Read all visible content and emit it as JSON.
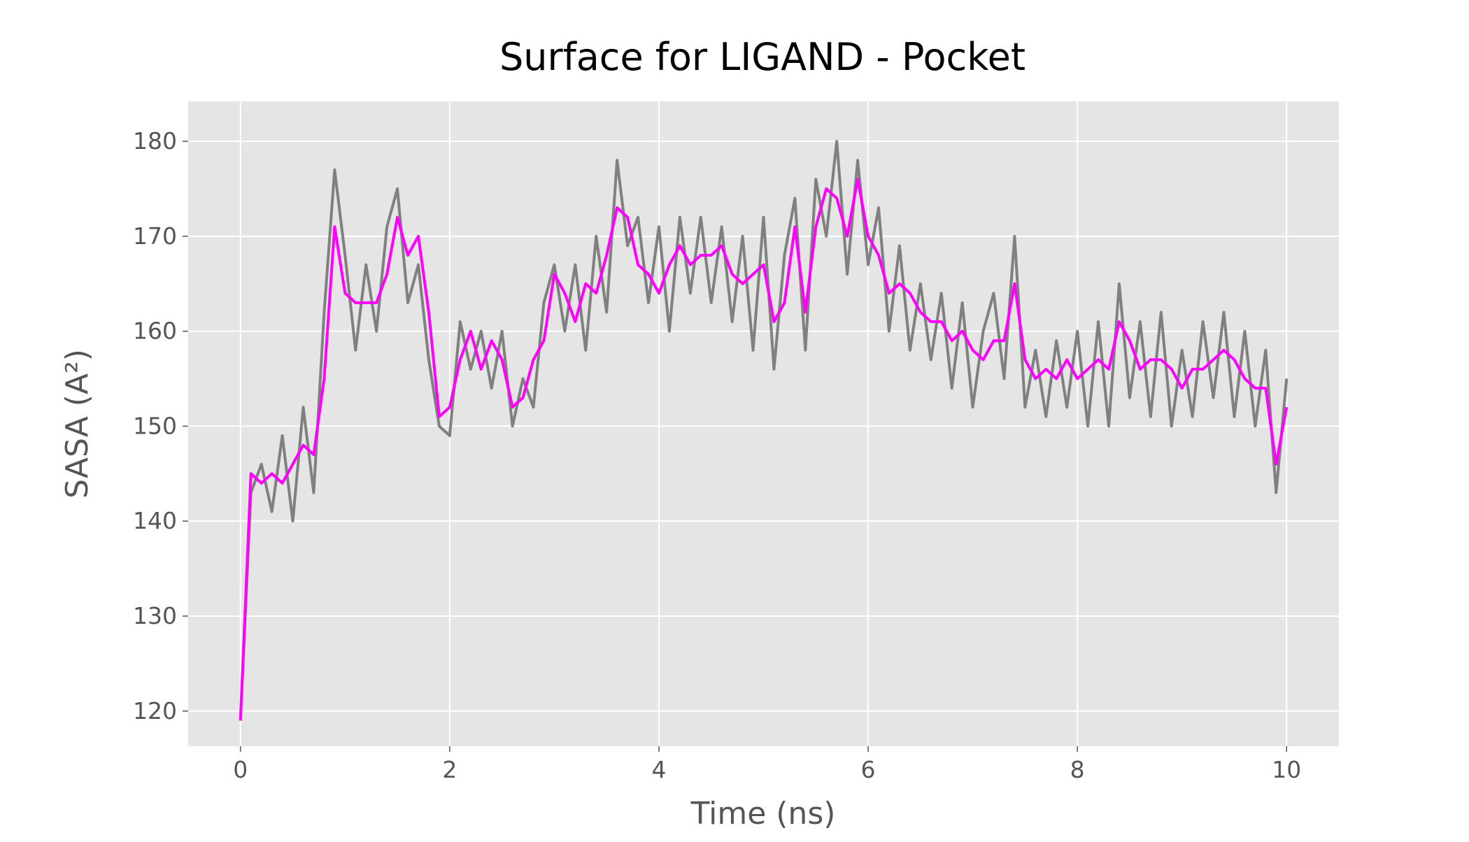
{
  "chart_data": {
    "type": "line",
    "title": "Surface for LIGAND - Pocket",
    "x_label": "Time (ns)",
    "y_label": "SASA (A²)",
    "x": [
      0,
      0.1,
      0.2,
      0.3,
      0.4,
      0.5,
      0.6,
      0.7,
      0.8,
      0.9,
      1,
      1.1,
      1.2,
      1.3,
      1.4,
      1.5,
      1.6,
      1.7,
      1.8,
      1.9,
      2,
      2.1,
      2.2,
      2.3,
      2.4,
      2.5,
      2.6,
      2.7,
      2.8,
      2.9,
      3,
      3.1,
      3.2,
      3.3,
      3.4,
      3.5,
      3.6,
      3.7,
      3.8,
      3.9,
      4,
      4.1,
      4.2,
      4.3,
      4.4,
      4.5,
      4.6,
      4.7,
      4.8,
      4.9,
      5,
      5.1,
      5.2,
      5.3,
      5.4,
      5.5,
      5.6,
      5.7,
      5.8,
      5.9,
      6,
      6.1,
      6.2,
      6.3,
      6.4,
      6.5,
      6.6,
      6.7,
      6.8,
      6.9,
      7,
      7.1,
      7.2,
      7.3,
      7.4,
      7.5,
      7.6,
      7.7,
      7.8,
      7.9,
      8,
      8.1,
      8.2,
      8.3,
      8.4,
      8.5,
      8.6,
      8.7,
      8.8,
      8.9,
      9,
      9.1,
      9.2,
      9.3,
      9.4,
      9.5,
      9.6,
      9.7,
      9.8,
      9.9,
      10
    ],
    "series": [
      {
        "color": "#808080",
        "values": [
          119,
          143,
          146,
          141,
          149,
          140,
          152,
          143,
          162,
          177,
          168,
          158,
          167,
          160,
          171,
          175,
          163,
          167,
          157,
          150,
          149,
          161,
          156,
          160,
          154,
          160,
          150,
          155,
          152,
          163,
          167,
          160,
          167,
          158,
          170,
          162,
          178,
          169,
          172,
          163,
          171,
          160,
          172,
          164,
          172,
          163,
          171,
          161,
          170,
          158,
          172,
          156,
          168,
          174,
          158,
          176,
          170,
          180,
          166,
          178,
          167,
          173,
          160,
          169,
          158,
          165,
          157,
          164,
          154,
          163,
          152,
          160,
          164,
          155,
          170,
          152,
          158,
          151,
          159,
          152,
          160,
          150,
          161,
          150,
          165,
          153,
          161,
          151,
          162,
          150,
          158,
          151,
          161,
          153,
          162,
          151,
          160,
          150,
          158,
          143,
          155
        ]
      },
      {
        "color": "#ff00ff",
        "values": [
          119,
          145,
          144,
          145,
          144,
          146,
          148,
          147,
          155,
          171,
          164,
          163,
          163,
          163,
          166,
          172,
          168,
          170,
          162,
          151,
          152,
          157,
          160,
          156,
          159,
          157,
          152,
          153,
          157,
          159,
          166,
          164,
          161,
          165,
          164,
          168,
          173,
          172,
          167,
          166,
          164,
          167,
          169,
          167,
          168,
          168,
          169,
          166,
          165,
          166,
          167,
          161,
          163,
          171,
          162,
          171,
          175,
          174,
          170,
          176,
          170,
          168,
          164,
          165,
          164,
          162,
          161,
          161,
          159,
          160,
          158,
          157,
          159,
          159,
          165,
          157,
          155,
          156,
          155,
          157,
          155,
          156,
          157,
          156,
          161,
          159,
          156,
          157,
          157,
          156,
          154,
          156,
          156,
          157,
          158,
          157,
          155,
          154,
          154,
          146,
          152
        ]
      }
    ],
    "xlim": [
      -0.5,
      10.5
    ],
    "ylim": [
      116.3,
      184.2
    ],
    "xticks": [
      0,
      2,
      4,
      6,
      8,
      10
    ],
    "yticks": [
      120,
      130,
      140,
      150,
      160,
      170,
      180
    ],
    "grid": true,
    "background": "#e5e5e5"
  }
}
